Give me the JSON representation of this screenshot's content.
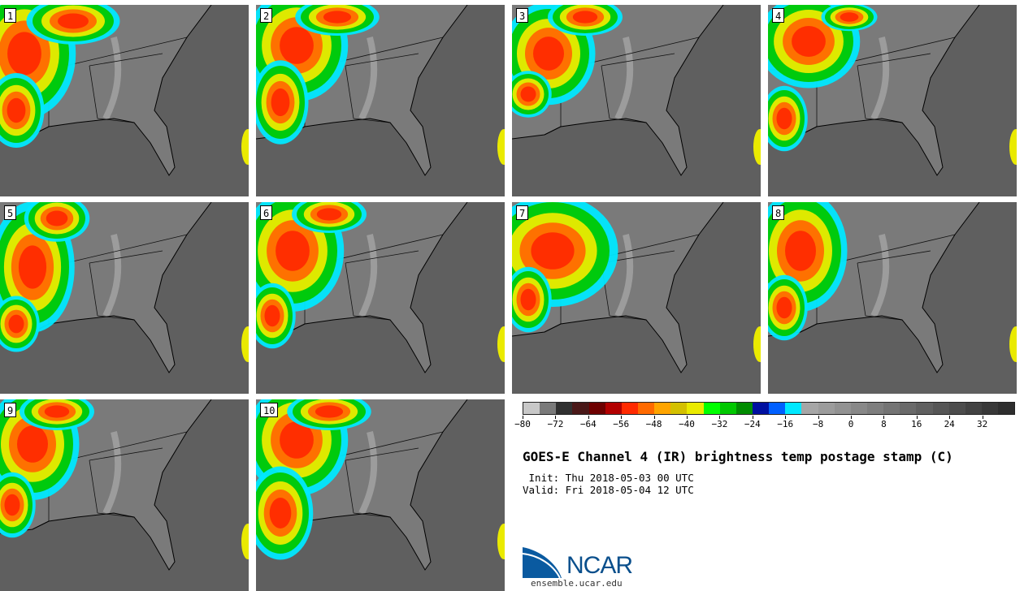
{
  "panels": [
    {
      "label": "1"
    },
    {
      "label": "2"
    },
    {
      "label": "3"
    },
    {
      "label": "4"
    },
    {
      "label": "5"
    },
    {
      "label": "6"
    },
    {
      "label": "7"
    },
    {
      "label": "8"
    },
    {
      "label": "9"
    },
    {
      "label": "10"
    }
  ],
  "colorbar": {
    "colors": [
      "#c8c8c8",
      "#7a7a7a",
      "#303030",
      "#4a1818",
      "#6e0000",
      "#b30000",
      "#ff2a00",
      "#ff6a00",
      "#ffa500",
      "#d4c000",
      "#eaea00",
      "#00ff00",
      "#00c800",
      "#008c00",
      "#0010a0",
      "#0060ff",
      "#00e8ff",
      "#a6a6a6",
      "#9c9c9c",
      "#929292",
      "#888888",
      "#7e7e7e",
      "#747474",
      "#6a6a6a",
      "#606060",
      "#565656",
      "#4c4c4c",
      "#424242",
      "#383838",
      "#2e2e2e"
    ],
    "tick_labels": [
      "−80",
      "−72",
      "−64",
      "−56",
      "−48",
      "−40",
      "−32",
      "−24",
      "−16",
      "−8",
      "0",
      "8",
      "16",
      "24",
      "32"
    ],
    "range": [
      -80,
      40
    ]
  },
  "title": "GOES-E Channel 4 (IR) brightness temp postage stamp (C)",
  "init_text": " Init: Thu 2018-05-03 00 UTC",
  "valid_text": "Valid: Fri 2018-05-04 12 UTC",
  "logo_text": "NCAR",
  "logo_url": "ensemble.ucar.edu"
}
